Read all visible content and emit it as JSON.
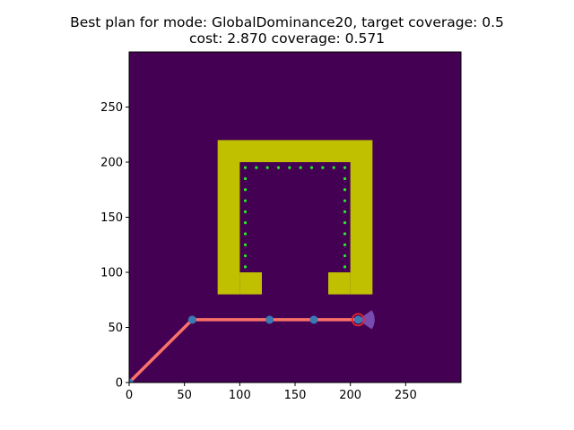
{
  "chart_data": {
    "type": "heatmap",
    "title_line1": "Best plan for mode: GlobalDominance20, target coverage: 0.5",
    "title_line2": "cost: 2.870 coverage: 0.571",
    "xlim": [
      0,
      300
    ],
    "ylim": [
      0,
      300
    ],
    "xticks": [
      0,
      50,
      100,
      150,
      200,
      250
    ],
    "yticks": [
      0,
      50,
      100,
      150,
      200,
      250
    ],
    "grid": false,
    "colors": {
      "background": "#440154",
      "obstacle": "#c0c000",
      "path": "#fa7268",
      "waypoint": "#3b79b5",
      "target_points": "#22ee22",
      "end_marker": "#e8262a",
      "sensor_wedge": "#7b4fb5"
    },
    "obstacles": [
      {
        "x0": 80,
        "x1": 220,
        "y0": 200,
        "y1": 220
      },
      {
        "x0": 80,
        "x1": 100,
        "y0": 80,
        "y1": 200
      },
      {
        "x0": 200,
        "x1": 220,
        "y0": 80,
        "y1": 200
      },
      {
        "x0": 100,
        "x1": 120,
        "y0": 80,
        "y1": 100
      },
      {
        "x0": 180,
        "x1": 200,
        "y0": 80,
        "y1": 100
      }
    ],
    "target_points": {
      "top_row": {
        "y": 195,
        "x": [
          105,
          115,
          125,
          135,
          145,
          155,
          165,
          175,
          185,
          195
        ]
      },
      "left_column": {
        "x": 105,
        "y": [
          105,
          115,
          125,
          135,
          145,
          155,
          165,
          175,
          185
        ]
      },
      "right_column": {
        "x": 195,
        "y": [
          105,
          115,
          125,
          135,
          145,
          155,
          165,
          175,
          185
        ]
      }
    },
    "path": [
      [
        0,
        0
      ],
      [
        57,
        57
      ],
      [
        127,
        57
      ],
      [
        167,
        57
      ],
      [
        207,
        57
      ]
    ],
    "waypoints": [
      [
        0,
        0
      ],
      [
        57,
        57
      ],
      [
        127,
        57
      ],
      [
        167,
        57
      ],
      [
        207,
        57
      ]
    ],
    "end_point": [
      207,
      57
    ],
    "sensor_wedge": {
      "apex": [
        207,
        57
      ],
      "direction_deg": 0,
      "half_angle_deg": 35,
      "range": 15
    }
  }
}
